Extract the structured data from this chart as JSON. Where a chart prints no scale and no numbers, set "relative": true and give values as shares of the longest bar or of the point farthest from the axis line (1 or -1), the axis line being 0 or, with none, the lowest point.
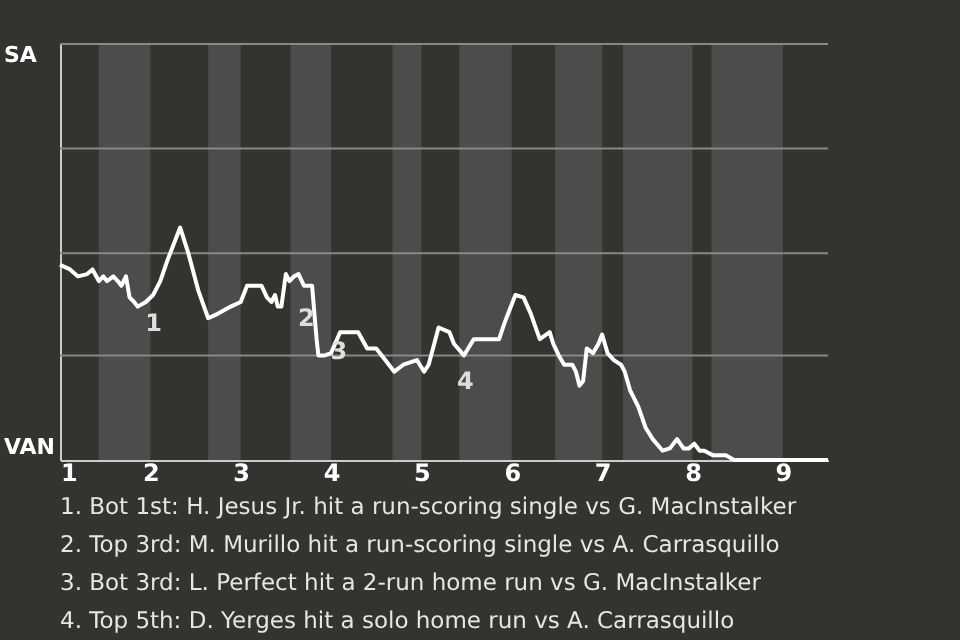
{
  "chart_data": {
    "type": "line",
    "x": [
      1.0,
      1.11,
      1.2,
      1.3,
      1.36,
      1.43,
      1.48,
      1.52,
      1.59,
      1.64,
      1.68,
      1.73,
      1.77,
      1.82,
      1.86,
      1.95,
      2.03,
      2.11,
      2.19,
      2.33,
      2.42,
      2.53,
      2.64,
      2.75,
      2.89,
      3.0,
      3.07,
      3.16,
      3.23,
      3.29,
      3.34,
      3.38,
      3.41,
      3.45,
      3.5,
      3.54,
      3.59,
      3.64,
      3.7,
      3.79,
      3.82,
      3.84,
      3.86,
      3.93,
      4.0,
      4.1,
      4.3,
      4.4,
      4.5,
      4.6,
      4.7,
      4.8,
      4.95,
      5.03,
      5.08,
      5.19,
      5.31,
      5.36,
      5.47,
      5.58,
      5.75,
      5.86,
      5.92,
      5.97,
      6.04,
      6.13,
      6.21,
      6.31,
      6.42,
      6.46,
      6.52,
      6.58,
      6.67,
      6.71,
      6.75,
      6.79,
      6.83,
      6.9,
      6.96,
      7.0,
      7.06,
      7.13,
      7.21,
      7.25,
      7.31,
      7.4,
      7.48,
      7.56,
      7.67,
      7.75,
      7.83,
      7.9,
      7.96,
      8.02,
      8.08,
      8.13,
      8.23,
      8.37,
      8.46,
      8.54,
      8.69,
      9.0,
      9.5
    ],
    "series": [
      {
        "color": "#ffffff",
        "values": [
          0.84,
          0.82,
          0.79,
          0.8,
          0.82,
          0.77,
          0.79,
          0.77,
          0.79,
          0.77,
          0.75,
          0.79,
          0.7,
          0.68,
          0.66,
          0.68,
          0.71,
          0.77,
          0.86,
          1,
          0.89,
          0.73,
          0.61,
          0.63,
          0.66,
          0.68,
          0.75,
          0.75,
          0.75,
          0.7,
          0.68,
          0.71,
          0.66,
          0.66,
          0.8,
          0.77,
          0.79,
          0.8,
          0.75,
          0.75,
          0.61,
          0.52,
          0.45,
          0.45,
          0.46,
          0.55,
          0.55,
          0.48,
          0.48,
          0.43,
          0.38,
          0.41,
          0.43,
          0.38,
          0.41,
          0.57,
          0.55,
          0.5,
          0.45,
          0.52,
          0.52,
          0.52,
          0.59,
          0.64,
          0.71,
          0.7,
          0.63,
          0.52,
          0.55,
          0.5,
          0.45,
          0.41,
          0.41,
          0.38,
          0.32,
          0.34,
          0.48,
          0.46,
          0.5,
          0.54,
          0.46,
          0.43,
          0.41,
          0.38,
          0.3,
          0.23,
          0.14,
          0.09,
          0.04,
          0.05,
          0.09,
          0.05,
          0.05,
          0.07,
          0.04,
          0.04,
          0.02,
          0.02,
          0,
          0,
          0,
          0,
          0
        ]
      }
    ],
    "relative": true,
    "xlim": [
      1,
      9.5
    ],
    "xticks": [
      1,
      2,
      3,
      4,
      5,
      6,
      7,
      8,
      9
    ],
    "ref_lines": [
      {
        "axis": "y",
        "value": 0.45,
        "color": "#8a8886"
      },
      {
        "axis": "y",
        "value": 0.89,
        "color": "#8a8886"
      },
      {
        "axis": "y",
        "value": 1.34,
        "color": "#8a8886"
      },
      {
        "axis": "y",
        "value": 1.79,
        "color": "#8a8886"
      }
    ],
    "bands": [
      {
        "axis": "x",
        "from": 1.43,
        "to": 2,
        "color": "#4d4c4a"
      },
      {
        "axis": "x",
        "from": 2.64,
        "to": 3,
        "color": "#4d4c4a"
      },
      {
        "axis": "x",
        "from": 3.55,
        "to": 4,
        "color": "#4d4c4a"
      },
      {
        "axis": "x",
        "from": 4.68,
        "to": 5,
        "color": "#4d4c4a"
      },
      {
        "axis": "x",
        "from": 5.42,
        "to": 6,
        "color": "#4d4c4a"
      },
      {
        "axis": "x",
        "from": 6.48,
        "to": 7,
        "color": "#4d4c4a"
      },
      {
        "axis": "x",
        "from": 7.23,
        "to": 8,
        "color": "#4d4c4a"
      },
      {
        "axis": "x",
        "from": 8.21,
        "to": 9,
        "color": "#4d4c4a"
      }
    ],
    "annotations": [
      "SA",
      "VAN",
      {
        "text": "1",
        "x": 1.86,
        "y": 0.66
      },
      {
        "text": "2",
        "x": 3.55,
        "y": 0.68
      },
      {
        "text": "3",
        "x": 3.91,
        "y": 0.54
      },
      {
        "text": "4",
        "x": 5.31,
        "y": 0.41
      },
      "1. Bot 1st: H. Jesus Jr. hit a run-scoring single vs G. MacInstalker",
      "2. Top 3rd: M. Murillo hit a run-scoring single vs A. Carrasquillo",
      "3. Bot 3rd: L. Perfect hit a 2-run home run vs G. MacInstalker",
      "4. Top 5th: D. Yerges hit a solo home run vs A. Carrasquillo"
    ]
  }
}
